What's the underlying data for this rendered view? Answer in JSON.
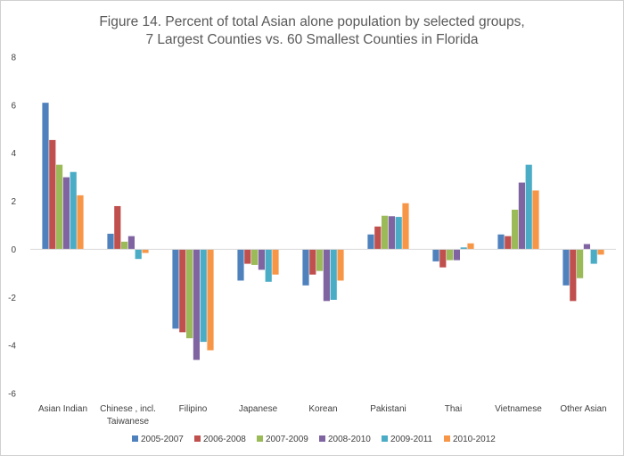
{
  "chart_data": {
    "type": "bar",
    "title": [
      "Figure 14. Percent of total Asian alone population by selected groups,",
      "7 Largest Counties vs. 60 Smallest Counties in Florida"
    ],
    "xlabel": "",
    "ylabel": "",
    "ylim": [
      -6,
      8
    ],
    "ytick_step": 2,
    "grid": false,
    "legend_position": "bottom",
    "categories": [
      [
        "Asian Indian"
      ],
      [
        "Chinese , incl.",
        "Taiwanese"
      ],
      [
        "Filipino"
      ],
      [
        "Japanese"
      ],
      [
        "Korean"
      ],
      [
        "Pakistani"
      ],
      [
        "Thai"
      ],
      [
        "Vietnamese"
      ],
      [
        "Other Asian"
      ]
    ],
    "series": [
      {
        "name": "2005-2007",
        "color": "#4F81BD",
        "values": [
          6.1,
          0.65,
          -3.3,
          -1.3,
          -1.5,
          0.62,
          -0.5,
          0.62,
          -1.5
        ]
      },
      {
        "name": "2006-2008",
        "color": "#C0504D",
        "values": [
          4.55,
          1.8,
          -3.45,
          -0.6,
          -1.05,
          0.95,
          -0.75,
          0.55,
          -2.15
        ]
      },
      {
        "name": "2007-2009",
        "color": "#9BBB59",
        "values": [
          3.52,
          0.32,
          -3.7,
          -0.65,
          -0.9,
          1.4,
          -0.45,
          1.65,
          -1.2
        ]
      },
      {
        "name": "2008-2010",
        "color": "#8064A2",
        "values": [
          3.0,
          0.55,
          -4.6,
          -0.85,
          -2.15,
          1.38,
          -0.45,
          2.78,
          0.22
        ]
      },
      {
        "name": "2009-2011",
        "color": "#4BACC6",
        "values": [
          3.22,
          -0.4,
          -3.85,
          -1.35,
          -2.1,
          1.35,
          0.08,
          3.52,
          -0.6
        ]
      },
      {
        "name": "2010-2012",
        "color": "#F79646",
        "values": [
          2.25,
          -0.15,
          -4.2,
          -1.05,
          -1.3,
          1.92,
          0.25,
          2.45,
          -0.22
        ]
      }
    ]
  }
}
